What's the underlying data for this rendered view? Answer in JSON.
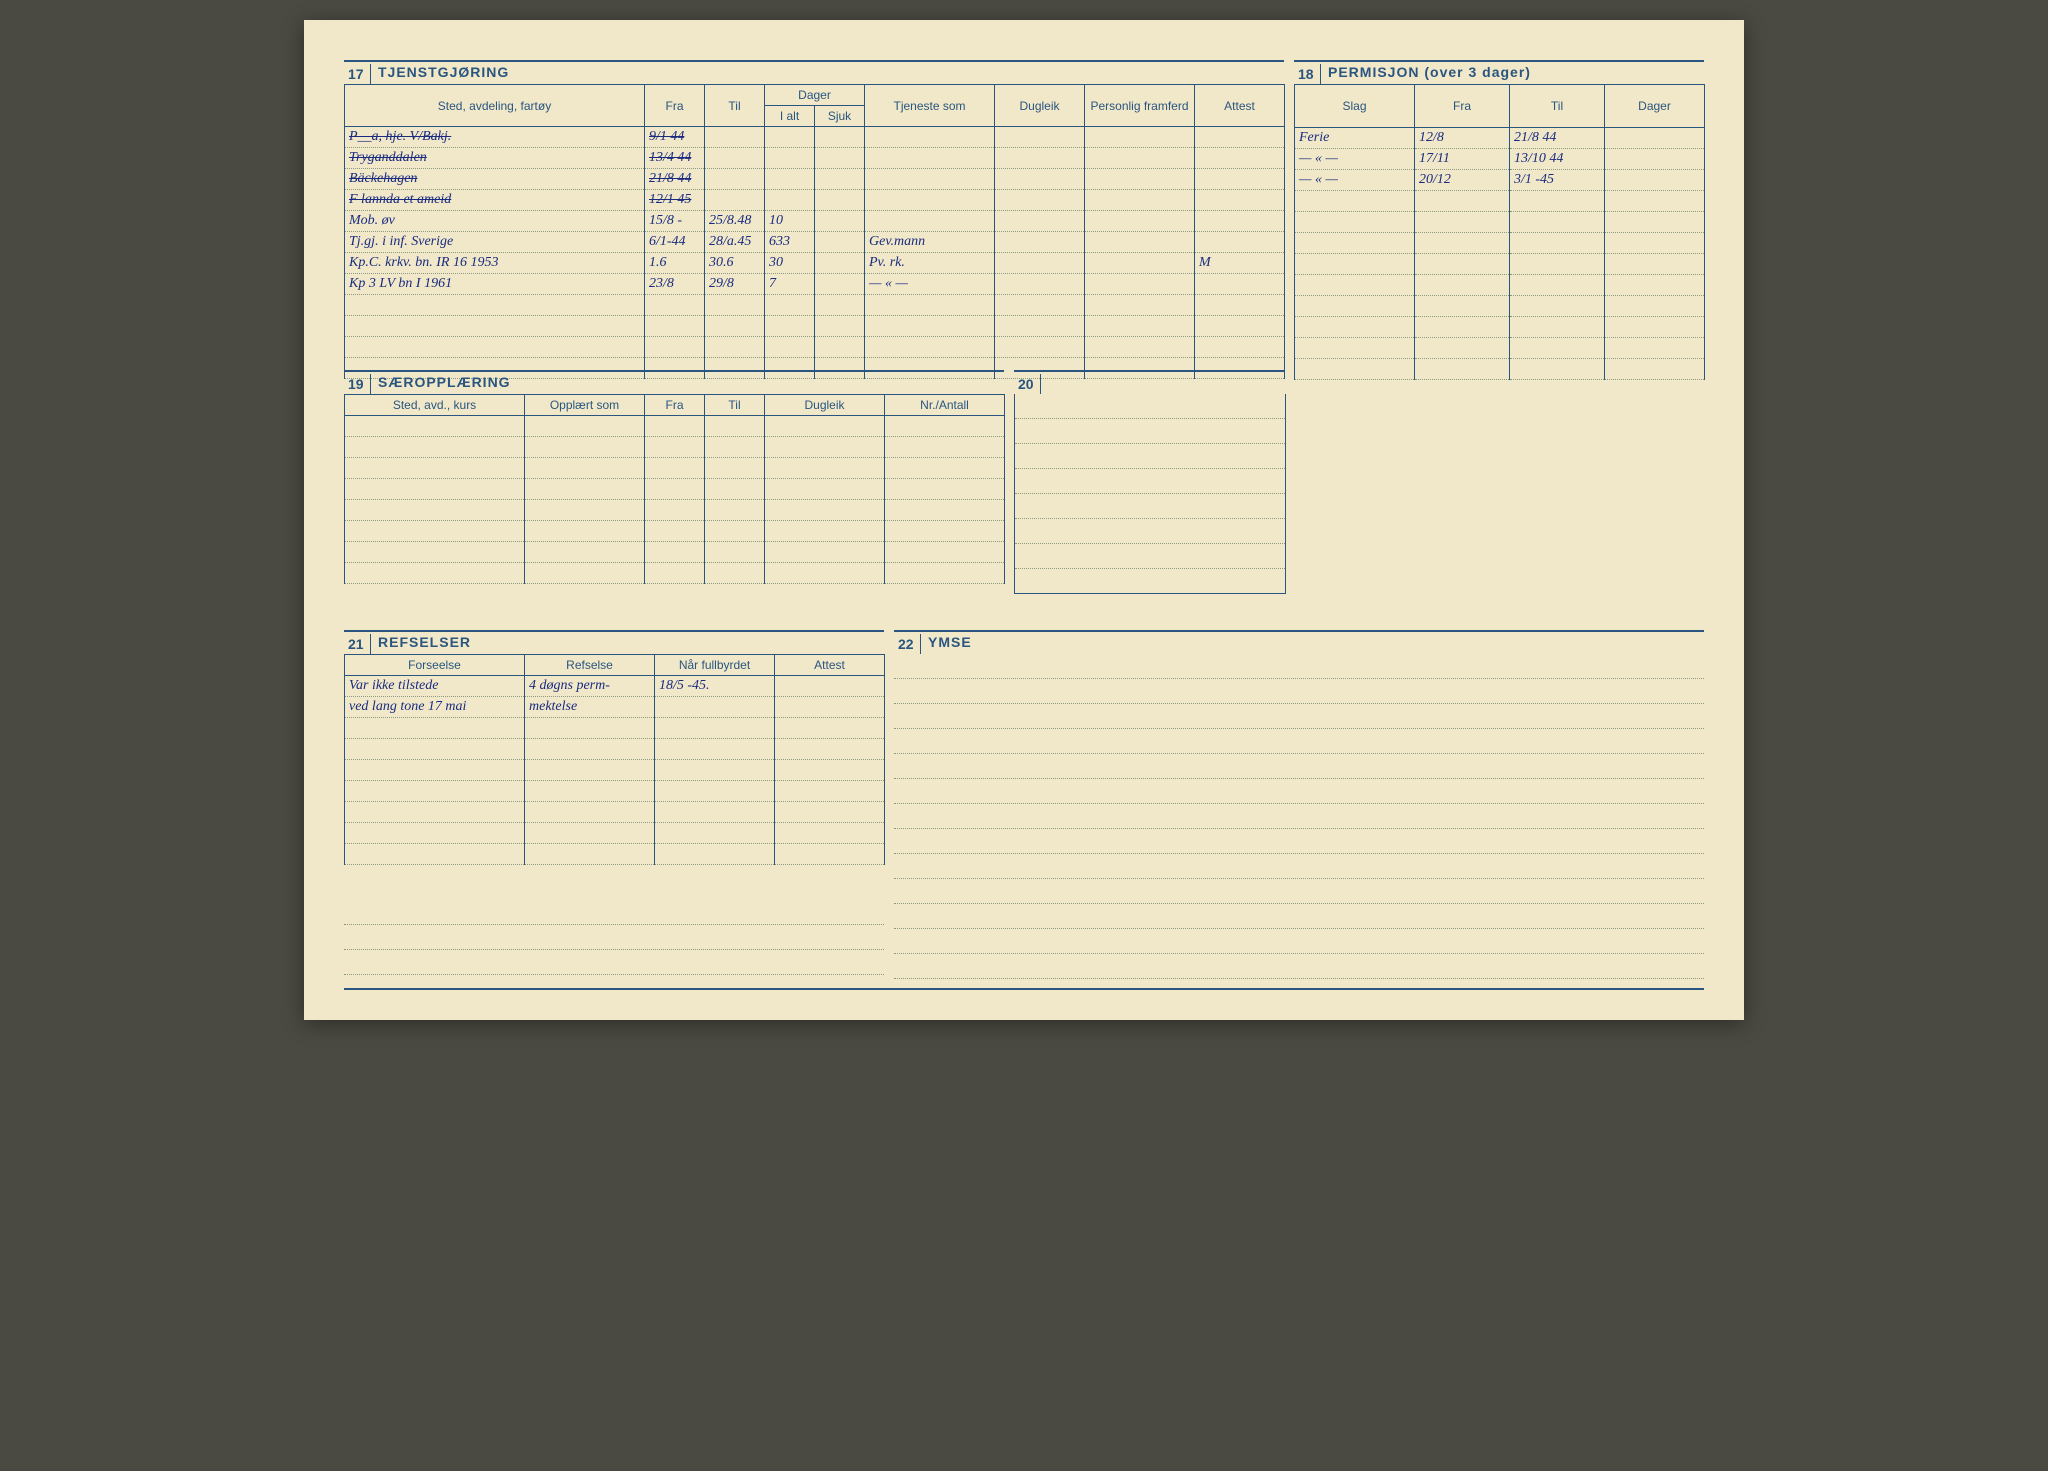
{
  "card": {
    "background_color": "#f0e8c8",
    "line_color": "#2a5580",
    "dot_color": "#8a9a80",
    "ink_color": "#1a2a80",
    "printed_font_size": 12,
    "header_font_size": 14,
    "handwriting_font_size": 14
  },
  "sections": {
    "s17": {
      "num": "17",
      "title": "TJENSTGJØRING",
      "columns": {
        "sted": "Sted, avdeling, fartøy",
        "fra": "Fra",
        "til": "Til",
        "dager": "Dager",
        "ialt": "I alt",
        "sjuk": "Sjuk",
        "tjeneste": "Tjeneste som",
        "dugleik": "Dugleik",
        "framferd": "Personlig framferd",
        "attest": "Attest"
      },
      "rows": [
        {
          "sted": "P__a, hje. V/Bakj.",
          "fra": "9/1 44",
          "til": "",
          "ialt": "",
          "sjuk": "",
          "tjeneste": "",
          "dugleik": "",
          "framferd": "",
          "attest": "",
          "strike": true
        },
        {
          "sted": "Tryganddalen",
          "fra": "13/4 44",
          "til": "",
          "ialt": "",
          "sjuk": "",
          "tjeneste": "",
          "dugleik": "",
          "framferd": "",
          "attest": "",
          "strike": true
        },
        {
          "sted": "Bäckehagen",
          "fra": "21/8 44",
          "til": "",
          "ialt": "",
          "sjuk": "",
          "tjeneste": "",
          "dugleik": "",
          "framferd": "",
          "attest": "",
          "strike": true
        },
        {
          "sted": "F lannda et ameid",
          "fra": "12/1 45",
          "til": "",
          "ialt": "",
          "sjuk": "",
          "tjeneste": "",
          "dugleik": "",
          "framferd": "",
          "attest": "",
          "strike": true
        },
        {
          "sted": "Mob. øv",
          "fra": "15/8 -",
          "til": "25/8.48",
          "ialt": "10",
          "sjuk": "",
          "tjeneste": "",
          "dugleik": "",
          "framferd": "",
          "attest": "",
          "strike": false
        },
        {
          "sted": "Tj.gj. i inf. Sverige",
          "fra": "6/1-44",
          "til": "28/a.45",
          "ialt": "633",
          "sjuk": "",
          "tjeneste": "Gev.mann",
          "dugleik": "",
          "framferd": "",
          "attest": "",
          "strike": false
        },
        {
          "sted": "Kp.C. krkv. bn.  IR 16       1953",
          "fra": "1.6",
          "til": "30.6",
          "ialt": "30",
          "sjuk": "",
          "tjeneste": "Pv. rk.",
          "dugleik": "",
          "framferd": "",
          "attest": "M",
          "strike": false
        },
        {
          "sted": "Kp 3 LV bn I                 1961",
          "fra": "23/8",
          "til": "29/8",
          "ialt": "7",
          "sjuk": "",
          "tjeneste": "— « —",
          "dugleik": "",
          "framferd": "",
          "attest": "",
          "strike": false
        }
      ]
    },
    "s18": {
      "num": "18",
      "title": "PERMISJON (over 3 dager)",
      "columns": {
        "slag": "Slag",
        "fra": "Fra",
        "til": "Til",
        "dager": "Dager"
      },
      "rows": [
        {
          "slag": "Ferie",
          "fra": "12/8",
          "til": "21/8 44",
          "dager": ""
        },
        {
          "slag": "— « —",
          "fra": "17/11",
          "til": "13/10 44",
          "dager": ""
        },
        {
          "slag": "— « —",
          "fra": "20/12",
          "til": "3/1 -45",
          "dager": ""
        }
      ]
    },
    "s19": {
      "num": "19",
      "title": "SÆROPPLÆRING",
      "columns": {
        "sted": "Sted, avd., kurs",
        "opplart": "Opplært som",
        "fra": "Fra",
        "til": "Til",
        "dugleik": "Dugleik",
        "nr": "Nr./Antall"
      }
    },
    "s20": {
      "num": "20",
      "title": ""
    },
    "s21": {
      "num": "21",
      "title": "REFSELSER",
      "columns": {
        "forseelse": "Forseelse",
        "refselse": "Refselse",
        "fullbyrdet": "Når fullbyrdet",
        "attest": "Attest"
      },
      "rows": [
        {
          "forseelse": "Var ikke tilstede",
          "refselse": "4 døgns perm-",
          "fullbyrdet": "18/5 -45.",
          "attest": ""
        },
        {
          "forseelse": "ved lang tone 17 mai",
          "refselse": "mektelse",
          "fullbyrdet": "",
          "attest": ""
        }
      ]
    },
    "s22": {
      "num": "22",
      "title": "YMSE"
    }
  }
}
